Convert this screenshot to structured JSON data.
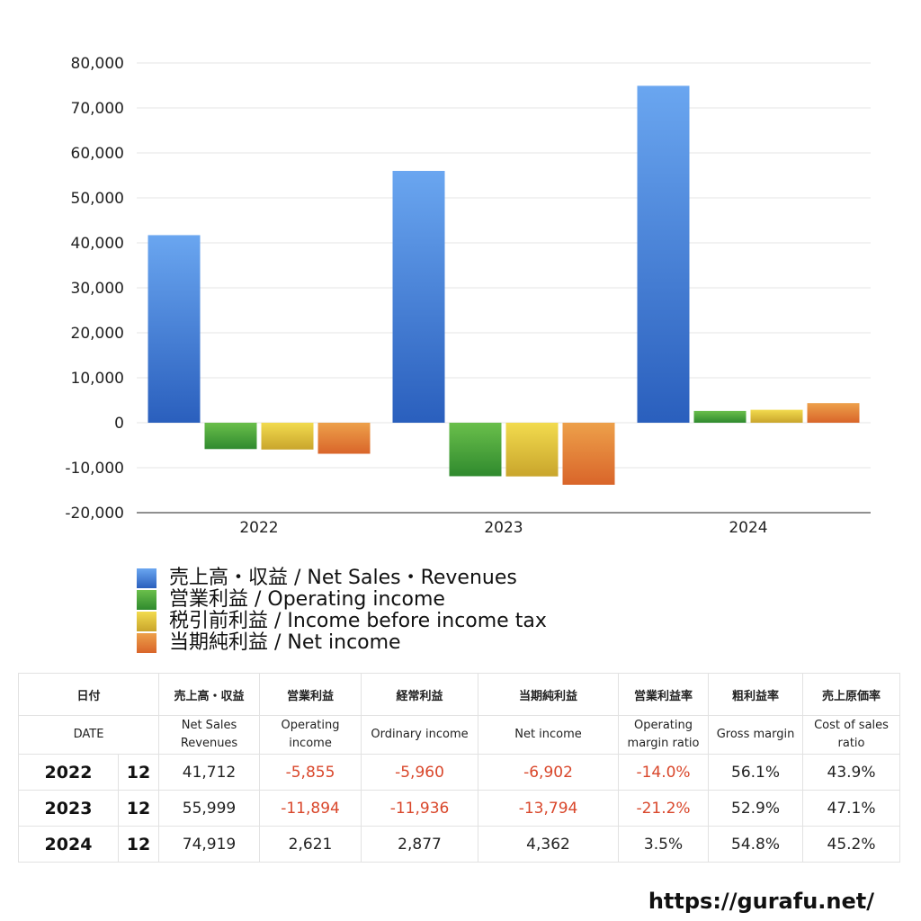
{
  "chart_data": {
    "type": "bar",
    "categories": [
      "2022",
      "2023",
      "2024"
    ],
    "series": [
      {
        "name": "売上高・収益 / Net Sales・Revenues",
        "values": [
          41712,
          55999,
          74919
        ],
        "color_top": "#6aa6f0",
        "color_bottom": "#2a5fbd"
      },
      {
        "name": "営業利益 / Operating income",
        "values": [
          -5855,
          -11894,
          2621
        ],
        "color_top": "#6abf4b",
        "color_bottom": "#2f8a2e"
      },
      {
        "name": "税引前利益 / Income before income tax",
        "values": [
          -5960,
          -11936,
          2877
        ],
        "color_top": "#f2db4e",
        "color_bottom": "#c9a52c"
      },
      {
        "name": "当期純利益 / Net income",
        "values": [
          -6902,
          -13794,
          4362
        ],
        "color_top": "#eda04a",
        "color_bottom": "#d9652a"
      }
    ],
    "ylim": [
      -20000,
      80000
    ],
    "yticks": [
      "80,000",
      "70,000",
      "60,000",
      "50,000",
      "40,000",
      "30,000",
      "20,000",
      "10,000",
      "0",
      "-10,000",
      "-20,000"
    ],
    "ytick_values": [
      80000,
      70000,
      60000,
      50000,
      40000,
      30000,
      20000,
      10000,
      0,
      -10000,
      -20000
    ],
    "grid": true,
    "legend_position": "bottom-left"
  },
  "legend": [
    {
      "label": "売上高・収益 / Net Sales・Revenues",
      "color": "#3f7fe0"
    },
    {
      "label": "営業利益 / Operating income",
      "color": "#45a23a"
    },
    {
      "label": "税引前利益 / Income before income tax",
      "color": "#ddc13c"
    },
    {
      "label": "当期純利益 / Net income",
      "color": "#e37c38"
    }
  ],
  "table": {
    "header_jp": [
      "日付",
      "売上高・収益",
      "営業利益",
      "経常利益",
      "当期純利益",
      "営業利益率",
      "粗利益率",
      "売上原価率"
    ],
    "header_en": [
      "DATE",
      "Net Sales Revenues",
      "Operating income",
      "Ordinary income",
      "Net income",
      "Operating margin ratio",
      "Gross margin",
      "Cost of sales ratio"
    ],
    "rows": [
      {
        "year": "2022",
        "month": "12",
        "cells": [
          "41,712",
          "-5,855",
          "-5,960",
          "-6,902",
          "-14.0%",
          "56.1%",
          "43.9%"
        ]
      },
      {
        "year": "2023",
        "month": "12",
        "cells": [
          "55,999",
          "-11,894",
          "-11,936",
          "-13,794",
          "-21.2%",
          "52.9%",
          "47.1%"
        ]
      },
      {
        "year": "2024",
        "month": "12",
        "cells": [
          "74,919",
          "2,621",
          "2,877",
          "4,362",
          "3.5%",
          "54.8%",
          "45.2%"
        ]
      }
    ]
  },
  "site_url": "https://gurafu.net/",
  "negative_color": "#d9472b"
}
